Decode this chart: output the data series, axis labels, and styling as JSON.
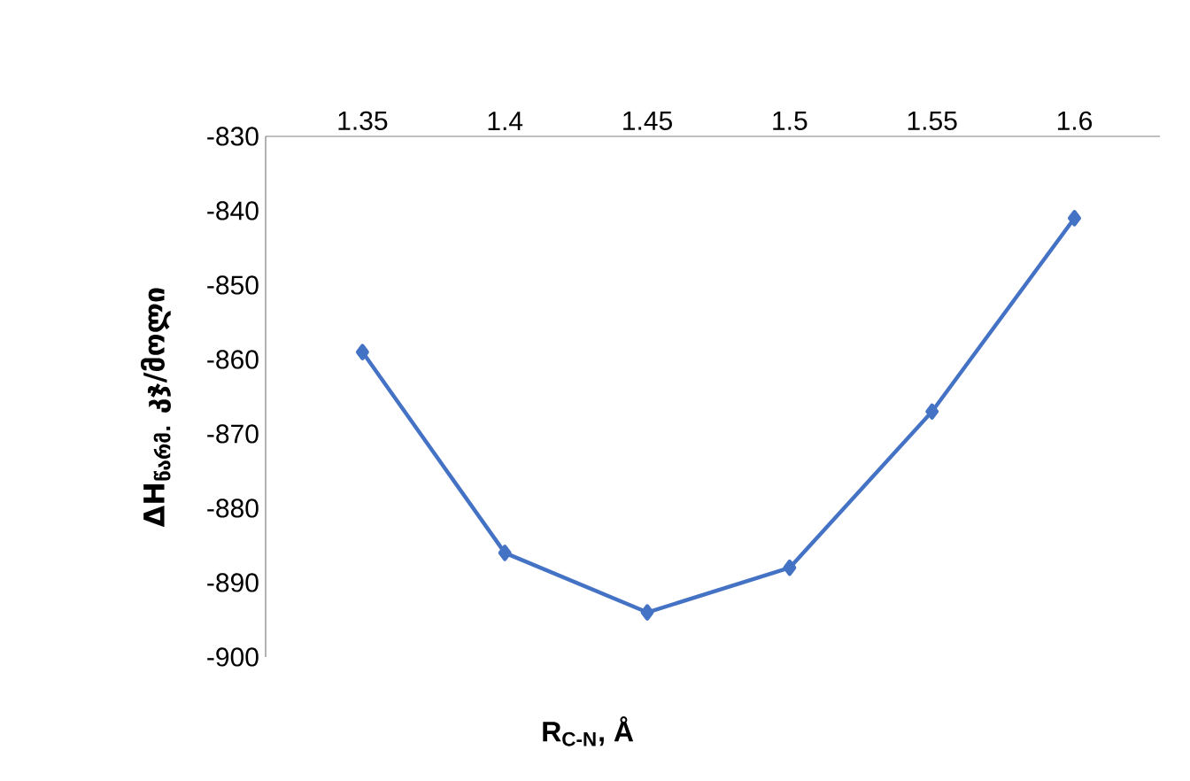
{
  "chart_data": {
    "type": "line",
    "xlabel": "R$_{C-N}$, Å",
    "ylabel": "ΔH$_{წარმ.}$ კჯ/მოლი",
    "categories": [
      "1.35",
      "1.4",
      "1.45",
      "1.5",
      "1.55",
      "1.6"
    ],
    "series": [
      {
        "color": "#4472c4",
        "values": [
          -859,
          -886,
          -894,
          -888,
          -867,
          -841
        ]
      }
    ],
    "ylim": [
      -900,
      -830
    ],
    "yticks": [
      -900,
      -890,
      -880,
      -870,
      -860,
      -850,
      -840,
      -830
    ],
    "marker": "diamond",
    "line_style": "solid"
  }
}
